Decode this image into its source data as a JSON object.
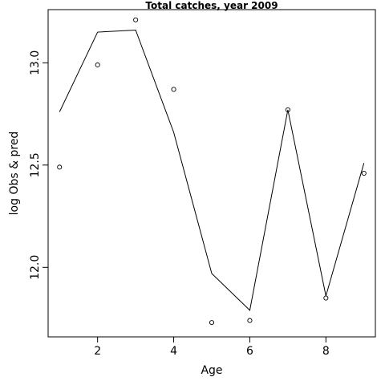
{
  "chart_data": {
    "type": "line",
    "title": "Total catches, year 2009",
    "xlabel": "Age",
    "ylabel": "log Obs & pred",
    "xlim": [
      0.7,
      9.3
    ],
    "ylim": [
      11.66,
      13.26
    ],
    "x_ticks": [
      2,
      4,
      6,
      8
    ],
    "y_ticks": [
      12.0,
      12.5,
      13.0
    ],
    "x_tick_labels": [
      "2",
      "4",
      "6",
      "8"
    ],
    "y_tick_labels": [
      "12.0",
      "12.5",
      "13.0"
    ],
    "grid": false,
    "series": [
      {
        "style": "points",
        "x": [
          1,
          2,
          3,
          4,
          5,
          6,
          7,
          8,
          9
        ],
        "y": [
          12.49,
          12.99,
          13.21,
          12.87,
          11.73,
          11.74,
          12.77,
          11.85,
          12.46
        ]
      },
      {
        "style": "line",
        "x": [
          1,
          2,
          3,
          4,
          5,
          6,
          7,
          8,
          9
        ],
        "y": [
          12.76,
          13.15,
          13.16,
          12.66,
          11.97,
          11.79,
          12.77,
          11.86,
          12.51
        ]
      }
    ]
  }
}
